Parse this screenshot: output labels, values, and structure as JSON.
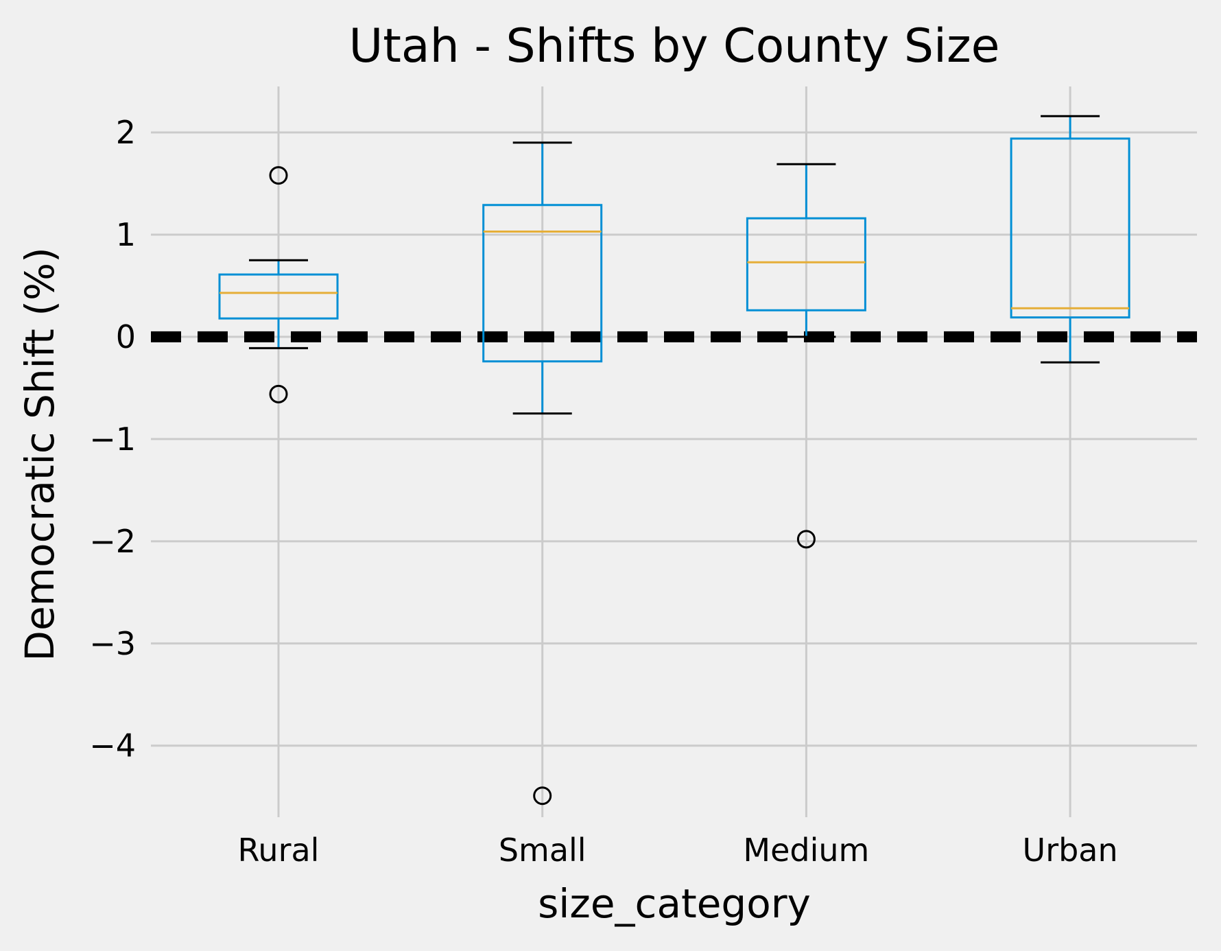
{
  "chart_data": {
    "type": "box",
    "title": "Utah - Shifts by County Size",
    "xlabel": "size_category",
    "ylabel": "Democratic Shift (%)",
    "ylim": [
      -4.7,
      2.45
    ],
    "yticks": [
      -4,
      -3,
      -2,
      -1,
      0,
      1,
      2
    ],
    "ytick_labels": [
      "−4",
      "−3",
      "−2",
      "−1",
      "0",
      "1",
      "2"
    ],
    "grid": true,
    "reference_line": {
      "y": 0,
      "style": "dashed",
      "color": "#000000"
    },
    "colors": {
      "box": "#008fd5",
      "median": "#e5ae38",
      "whisker_cap": "#000000",
      "background": "#f0f0f0",
      "grid": "#cbcbcb"
    },
    "categories": [
      "Rural",
      "Small",
      "Medium",
      "Urban"
    ],
    "boxes": [
      {
        "category": "Rural",
        "whislo": -0.11,
        "q1": 0.18,
        "median": 0.43,
        "q3": 0.61,
        "whishi": 0.75,
        "fliers": [
          1.58,
          -0.56
        ]
      },
      {
        "category": "Small",
        "whislo": -0.75,
        "q1": -0.24,
        "median": 1.03,
        "q3": 1.29,
        "whishi": 1.9,
        "fliers": [
          -4.49
        ]
      },
      {
        "category": "Medium",
        "whislo": 0.0,
        "q1": 0.26,
        "median": 0.73,
        "q3": 1.16,
        "whishi": 1.69,
        "fliers": [
          -1.98
        ]
      },
      {
        "category": "Urban",
        "whislo": -0.25,
        "q1": 0.19,
        "median": 0.28,
        "q3": 1.94,
        "whishi": 2.16,
        "fliers": []
      }
    ]
  }
}
